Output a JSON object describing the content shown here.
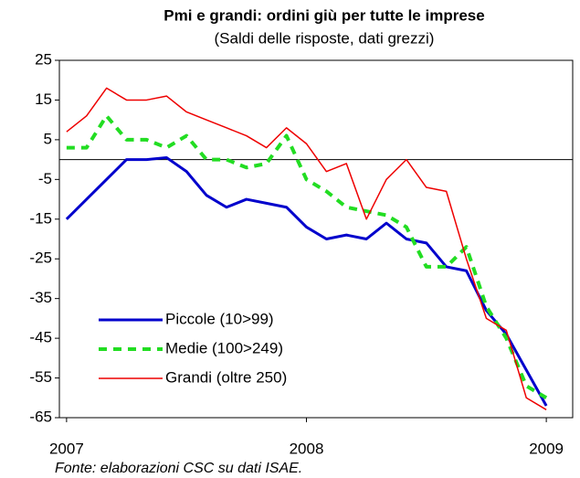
{
  "chart_data": {
    "type": "line",
    "title": "Pmi e grandi: ordini giù per tutte le imprese",
    "subtitle": "(Saldi delle risposte, dati grezzi)",
    "source": "Fonte: elaborazioni CSC su dati ISAE.",
    "x": [
      2007,
      2007.0833,
      2007.1667,
      2007.25,
      2007.3333,
      2007.4167,
      2007.5,
      2007.5833,
      2007.6667,
      2007.75,
      2007.8333,
      2007.9167,
      2008,
      2008.0833,
      2008.1667,
      2008.25,
      2008.3333,
      2008.4167,
      2008.5,
      2008.5833,
      2008.6667,
      2008.75,
      2008.8333,
      2008.9167,
      2009
    ],
    "series": [
      {
        "name": "Piccole (10>99)",
        "color": "#0000cc",
        "style": "solid",
        "width": 3,
        "values": [
          -15,
          -10,
          -5,
          0,
          0,
          0.5,
          -3,
          -9,
          -12,
          -10,
          -11,
          -12,
          -17,
          -20,
          -19,
          -20,
          -16,
          -20,
          -21,
          -27,
          -28,
          -38,
          -44,
          -53,
          -62
        ]
      },
      {
        "name": "Medie (100>249)",
        "color": "#22dd22",
        "style": "dashed",
        "width": 4,
        "values": [
          3,
          3,
          11,
          5,
          5,
          3,
          6,
          0,
          0,
          -2,
          -1,
          6,
          -5,
          -8,
          -12,
          -13,
          -14,
          -17,
          -27,
          -27,
          -22,
          -37,
          -45,
          -57,
          -60
        ]
      },
      {
        "name": "Grandi (oltre 250)",
        "color": "#ee0000",
        "style": "solid",
        "width": 1.5,
        "values": [
          7,
          11,
          18,
          15,
          15,
          16,
          12,
          10,
          8,
          6,
          3,
          8,
          4,
          -3,
          -1,
          -15,
          -5,
          0,
          -7,
          -8,
          -25,
          -40,
          -43,
          -60,
          -63
        ]
      }
    ],
    "xlim": [
      2006.97,
      2009.11
    ],
    "xticks": [
      2007,
      2008,
      2009
    ],
    "ylim": [
      -65,
      25
    ],
    "yticks": [
      25,
      15,
      5,
      -5,
      -15,
      -25,
      -35,
      -45,
      -55,
      -65
    ],
    "zero_line": true,
    "legend": "lower-left"
  }
}
